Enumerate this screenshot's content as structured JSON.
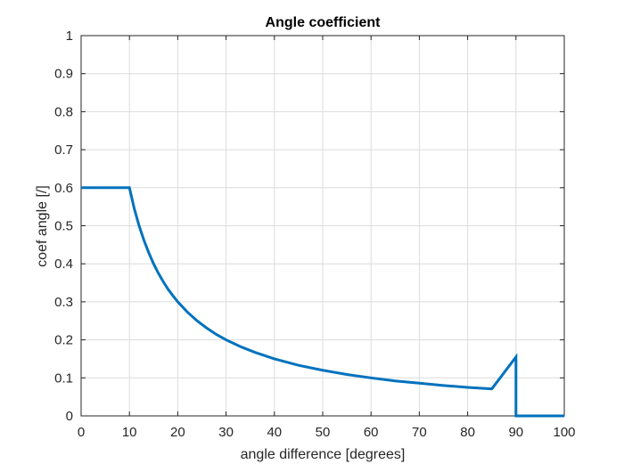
{
  "chart_data": {
    "type": "line",
    "title": "Angle coefficient",
    "xlabel": "angle difference [degrees]",
    "ylabel": "coef angle [/]",
    "xlim": [
      0,
      100
    ],
    "ylim": [
      0,
      1
    ],
    "x_ticks": [
      0,
      10,
      20,
      30,
      40,
      50,
      60,
      70,
      80,
      90,
      100
    ],
    "y_ticks": [
      0,
      0.1,
      0.2,
      0.3,
      0.4,
      0.5,
      0.6,
      0.7,
      0.8,
      0.9,
      1
    ],
    "x_tick_labels": [
      "0",
      "10",
      "20",
      "30",
      "40",
      "50",
      "60",
      "70",
      "80",
      "90",
      "100"
    ],
    "y_tick_labels": [
      "0",
      "0.1",
      "0.2",
      "0.3",
      "0.4",
      "0.5",
      "0.6",
      "0.7",
      "0.8",
      "0.9",
      "1"
    ],
    "grid": true,
    "line_color": "#0072BD",
    "series": [
      {
        "x": [
          0,
          10,
          11,
          12,
          13,
          14,
          15,
          16,
          17,
          18,
          19,
          20,
          22,
          24,
          26,
          28,
          30,
          33,
          36,
          40,
          45,
          50,
          55,
          60,
          65,
          70,
          75,
          80,
          85,
          90,
          90,
          100
        ],
        "y": [
          0.6,
          0.6,
          0.545,
          0.5,
          0.462,
          0.429,
          0.4,
          0.375,
          0.353,
          0.333,
          0.316,
          0.3,
          0.273,
          0.25,
          0.231,
          0.214,
          0.2,
          0.182,
          0.167,
          0.15,
          0.133,
          0.12,
          0.109,
          0.1,
          0.092,
          0.086,
          0.08,
          0.075,
          0.071,
          0.155,
          0,
          0
        ]
      }
    ]
  }
}
